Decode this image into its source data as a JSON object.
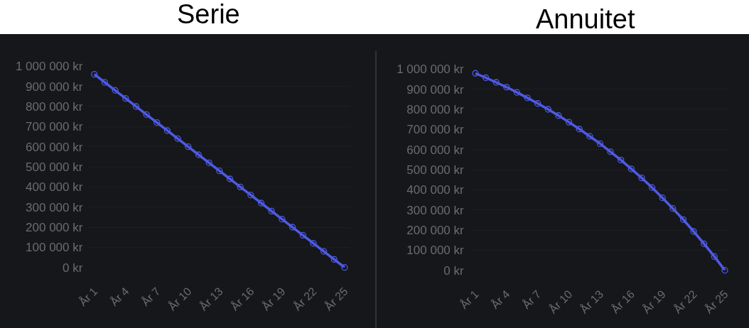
{
  "chart_data": [
    {
      "type": "line",
      "title": "Serie",
      "categories": [
        "År 1",
        null,
        null,
        "År 4",
        null,
        null,
        "År 7",
        null,
        null,
        "År 10",
        null,
        null,
        "År 13",
        null,
        null,
        "År 16",
        null,
        null,
        "År 19",
        null,
        null,
        "År 22",
        null,
        null,
        "År 25"
      ],
      "series": [
        {
          "color": "#4e5ae4",
          "values": [
            960000,
            920000,
            880000,
            840000,
            800000,
            760000,
            720000,
            680000,
            640000,
            600000,
            560000,
            520000,
            480000,
            440000,
            400000,
            360000,
            320000,
            280000,
            240000,
            200000,
            160000,
            120000,
            80000,
            40000,
            0
          ]
        }
      ],
      "ylim": [
        0,
        1000000
      ],
      "yticks": [
        {
          "value": 0,
          "label": "0 kr"
        },
        {
          "value": 100000,
          "label": "100 000 kr"
        },
        {
          "value": 200000,
          "label": "200 000 kr"
        },
        {
          "value": 300000,
          "label": "300 000 kr"
        },
        {
          "value": 400000,
          "label": "400 000 kr"
        },
        {
          "value": 500000,
          "label": "500 000 kr"
        },
        {
          "value": 600000,
          "label": "600 000 kr"
        },
        {
          "value": 700000,
          "label": "700 000 kr"
        },
        {
          "value": 800000,
          "label": "800 000 kr"
        },
        {
          "value": 900000,
          "label": "900 000 kr"
        },
        {
          "value": 1000000,
          "label": "1 000 000 kr"
        }
      ],
      "grid": "y",
      "marker": "circle",
      "line_style": "solid"
    },
    {
      "type": "line",
      "title": "Annuitet",
      "categories": [
        "År 1",
        null,
        null,
        "År 4",
        null,
        null,
        "År 7",
        null,
        null,
        "År 10",
        null,
        null,
        "År 13",
        null,
        null,
        "År 16",
        null,
        null,
        "År 19",
        null,
        null,
        "År 22",
        null,
        null,
        "År 25"
      ],
      "series": [
        {
          "color": "#4e5ae4",
          "values": [
            979000,
            957000,
            934000,
            910000,
            884000,
            857000,
            829000,
            800000,
            769000,
            736000,
            702000,
            666000,
            629000,
            589000,
            548000,
            504000,
            459000,
            411000,
            360000,
            307000,
            252000,
            193000,
            132000,
            68000,
            0
          ]
        }
      ],
      "ylim": [
        0,
        1000000
      ],
      "yticks": [
        {
          "value": 0,
          "label": "0 kr"
        },
        {
          "value": 100000,
          "label": "100 000 kr"
        },
        {
          "value": 200000,
          "label": "200 000 kr"
        },
        {
          "value": 300000,
          "label": "300 000 kr"
        },
        {
          "value": 400000,
          "label": "400 000 kr"
        },
        {
          "value": 500000,
          "label": "500 000 kr"
        },
        {
          "value": 600000,
          "label": "600 000 kr"
        },
        {
          "value": 700000,
          "label": "700 000 kr"
        },
        {
          "value": 800000,
          "label": "800 000 kr"
        },
        {
          "value": 900000,
          "label": "900 000 kr"
        },
        {
          "value": 1000000,
          "label": "1 000 000 kr"
        }
      ],
      "grid": "y",
      "marker": "circle",
      "line_style": "solid"
    }
  ]
}
